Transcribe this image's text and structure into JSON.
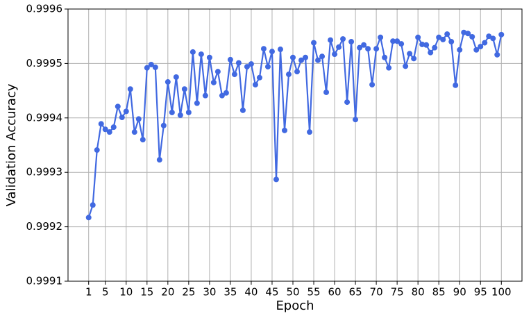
{
  "chart_data": {
    "type": "line",
    "xlabel": "Epoch",
    "ylabel": "Validation Accuracy",
    "x": [
      1,
      2,
      3,
      4,
      5,
      6,
      7,
      8,
      9,
      10,
      11,
      12,
      13,
      14,
      15,
      16,
      17,
      18,
      19,
      20,
      21,
      22,
      23,
      24,
      25,
      26,
      27,
      28,
      29,
      30,
      31,
      32,
      33,
      34,
      35,
      36,
      37,
      38,
      39,
      40,
      41,
      42,
      43,
      44,
      45,
      46,
      47,
      48,
      49,
      50,
      51,
      52,
      53,
      54,
      55,
      56,
      57,
      58,
      59,
      60,
      61,
      62,
      63,
      64,
      65,
      66,
      67,
      68,
      69,
      70,
      71,
      72,
      73,
      74,
      75,
      76,
      77,
      78,
      79,
      80,
      81,
      82,
      83,
      84,
      85,
      86,
      87,
      88,
      89,
      90,
      91,
      92,
      93,
      94,
      95,
      96,
      97,
      98,
      99,
      100
    ],
    "series": [
      {
        "color": "#4169e1",
        "values": [
          0.999217,
          0.99924,
          0.999341,
          0.999389,
          0.999379,
          0.999374,
          0.999383,
          0.999421,
          0.999401,
          0.999412,
          0.999453,
          0.999374,
          0.999398,
          0.99936,
          0.999492,
          0.999498,
          0.999493,
          0.999323,
          0.999386,
          0.999466,
          0.99941,
          0.999475,
          0.999405,
          0.999453,
          0.99941,
          0.999521,
          0.999427,
          0.999517,
          0.999441,
          0.999511,
          0.999465,
          0.999485,
          0.999441,
          0.999446,
          0.999507,
          0.99948,
          0.999501,
          0.999414,
          0.999494,
          0.999499,
          0.999461,
          0.999474,
          0.999527,
          0.999494,
          0.999522,
          0.999287,
          0.999526,
          0.999377,
          0.99948,
          0.999511,
          0.999485,
          0.999506,
          0.999511,
          0.999374,
          0.999538,
          0.999506,
          0.999513,
          0.999447,
          0.999543,
          0.999517,
          0.99953,
          0.999545,
          0.999429,
          0.99954,
          0.999397,
          0.999529,
          0.999534,
          0.999527,
          0.999461,
          0.999527,
          0.999548,
          0.999511,
          0.999492,
          0.999541,
          0.999541,
          0.999536,
          0.999495,
          0.999518,
          0.999509,
          0.999548,
          0.999535,
          0.999534,
          0.99952,
          0.999529,
          0.999548,
          0.999544,
          0.999554,
          0.99954,
          0.99946,
          0.999525,
          0.999557,
          0.999555,
          0.999549,
          0.999525,
          0.999531,
          0.999538,
          0.99955,
          0.999546,
          0.999516,
          0.999553
        ]
      }
    ],
    "xlim": [
      -3.95,
      104.95
    ],
    "xticks": [
      1,
      5,
      10,
      15,
      20,
      25,
      30,
      35,
      40,
      45,
      50,
      55,
      60,
      65,
      70,
      75,
      80,
      85,
      90,
      95,
      100
    ],
    "ylim": [
      0.9991,
      0.9996
    ],
    "yticks": [
      0.9991,
      0.9992,
      0.9993,
      0.9994,
      0.9995,
      0.9996
    ],
    "grid": true
  }
}
